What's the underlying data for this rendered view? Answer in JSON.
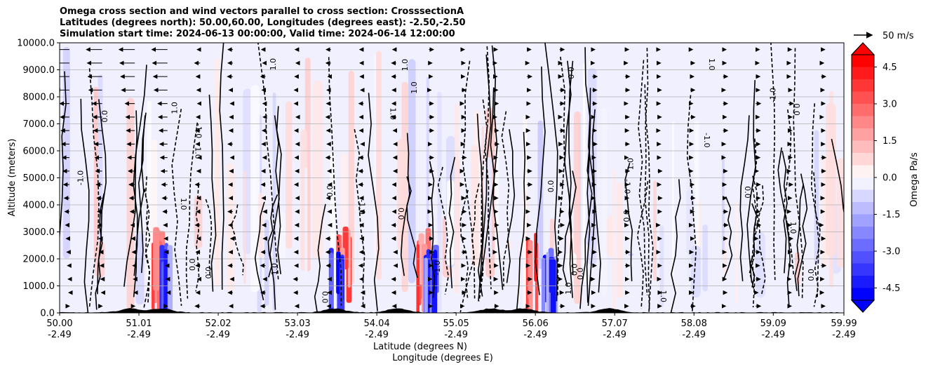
{
  "chart_data": {
    "type": "heatmap",
    "title_lines": [
      "Omega cross section and wind vectors parallel to cross section: CrosssectionA",
      "Latitudes (degrees north): 50.00,60.00, Longitudes (degrees east): -2.50,-2.50",
      "Simulation start time: 2024-06-13 00:00:00, Valid time: 2024-06-14 12:00:00"
    ],
    "ylabel": "Altitude (meters)",
    "xlabel_1": "Latitude (degrees N)",
    "xlabel_2": "Longitude (degrees E)",
    "ylim": [
      0,
      10000
    ],
    "yticks": [
      "0.0",
      "1000.0",
      "2000.0",
      "3000.0",
      "4000.0",
      "5000.0",
      "6000.0",
      "7000.0",
      "8000.0",
      "9000.0",
      "10000.0"
    ],
    "ytick_values": [
      0,
      1000,
      2000,
      3000,
      4000,
      5000,
      6000,
      7000,
      8000,
      9000,
      10000
    ],
    "xlim": [
      50.0,
      59.99
    ],
    "xtick_values": [
      50.0,
      51.01,
      52.02,
      53.03,
      54.04,
      55.05,
      56.06,
      57.07,
      58.08,
      59.09,
      59.99
    ],
    "xticks_lat": [
      "50.00",
      "51.01",
      "52.02",
      "53.03",
      "54.04",
      "55.05",
      "56.06",
      "57.07",
      "58.08",
      "59.09",
      "59.99"
    ],
    "xticks_lon": [
      "-2.49",
      "-2.49",
      "-2.49",
      "-2.49",
      "-2.49",
      "-2.49",
      "-2.49",
      "-2.49",
      "-2.49",
      "-2.49",
      "-2.49"
    ],
    "colorbar": {
      "label": "Omega Pa/s",
      "range": [
        -5.0,
        5.0
      ],
      "ticks": [
        "-4.5",
        "-3.0",
        "-1.5",
        "0.0",
        "1.5",
        "3.0",
        "4.5"
      ],
      "tick_values": [
        -4.5,
        -3.0,
        -1.5,
        0.0,
        1.5,
        3.0,
        4.5
      ],
      "colormap": "bwr",
      "low_color": "#0000ff",
      "mid_color": "#ffffff",
      "high_color": "#ff0000"
    },
    "quiver_key": {
      "label": "50 m/s",
      "speed": 50
    },
    "contour_labels": [
      "0.0",
      "-1.0",
      "1.0"
    ],
    "features": {
      "strong_descent_lat": [
        51.2,
        53.6,
        54.6,
        56.0
      ],
      "strong_ascent_lat": [
        51.3,
        53.5,
        54.7,
        56.2
      ],
      "terrain_peaks_lat": [
        50.9,
        51.3,
        53.5,
        54.3,
        55.5,
        55.9,
        57.0
      ]
    }
  }
}
